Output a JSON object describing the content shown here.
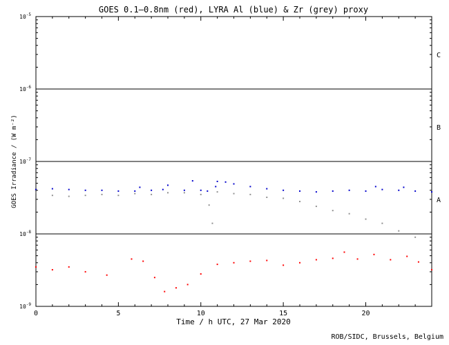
{
  "chart_data": {
    "type": "scatter",
    "title": "GOES 0.1–0.8nm (red), LYRA Al (blue) & Zr (grey) proxy",
    "xlabel": "Time / h UTC, 27 Mar 2020",
    "ylabel": "GOES Irradiance / (W m⁻²)",
    "xlim": [
      0,
      24
    ],
    "ylim": [
      1e-09,
      1e-05
    ],
    "y_scale": "log",
    "x_ticks": [
      0,
      5,
      10,
      15,
      20
    ],
    "x_tick_labels": [
      "0",
      "5",
      "10",
      "15",
      "20"
    ],
    "y_ticks": [
      1e-09,
      1e-08,
      1e-07,
      1e-06,
      1e-05
    ],
    "y_tick_labels": [
      {
        "base": "10",
        "exp": "-9"
      },
      {
        "base": "10",
        "exp": "-8"
      },
      {
        "base": "10",
        "exp": "-7"
      },
      {
        "base": "10",
        "exp": "-6"
      },
      {
        "base": "10",
        "exp": "-5"
      }
    ],
    "class_lines": [
      1e-08,
      1e-07,
      1e-06
    ],
    "class_labels": [
      {
        "label": "A",
        "y": 3e-08
      },
      {
        "label": "B",
        "y": 3e-07
      },
      {
        "label": "C",
        "y": 3e-06
      }
    ],
    "series": [
      {
        "name": "GOES 0.1–0.8nm",
        "color": "#ff0000",
        "x": [
          0,
          1,
          2,
          3,
          4.3,
          5.8,
          6.5,
          7.2,
          7.8,
          8.5,
          9.2,
          10,
          11,
          12,
          13,
          14,
          15,
          16,
          17,
          18,
          18.7,
          19.5,
          20.5,
          21.5,
          22.5,
          23.2,
          24
        ],
        "y": [
          3.5e-09,
          3.2e-09,
          3.5e-09,
          3e-09,
          2.7e-09,
          4.5e-09,
          4.2e-09,
          2.5e-09,
          1.6e-09,
          1.8e-09,
          2e-09,
          2.8e-09,
          3.8e-09,
          4e-09,
          4.2e-09,
          4.3e-09,
          3.7e-09,
          4e-09,
          4.4e-09,
          4.6e-09,
          5.6e-09,
          4.5e-09,
          5.2e-09,
          4.4e-09,
          4.9e-09,
          4.1e-09,
          3.2e-09
        ]
      },
      {
        "name": "LYRA Al",
        "color": "#0000cc",
        "x": [
          0,
          1,
          2,
          3,
          4,
          5,
          6,
          6.3,
          7,
          7.7,
          8,
          9,
          9.5,
          10,
          10.4,
          10.9,
          11,
          11.5,
          12,
          13,
          14,
          15,
          16,
          17,
          18,
          19,
          20,
          20.6,
          21,
          22,
          22.3,
          23,
          24
        ],
        "y": [
          4.1e-08,
          4.2e-08,
          4.1e-08,
          4e-08,
          4e-08,
          3.9e-08,
          3.9e-08,
          4.4e-08,
          4e-08,
          4.1e-08,
          4.7e-08,
          4e-08,
          5.4e-08,
          4e-08,
          3.9e-08,
          4.5e-08,
          5.3e-08,
          5.2e-08,
          4.9e-08,
          4.5e-08,
          4.2e-08,
          4e-08,
          3.9e-08,
          3.8e-08,
          3.9e-08,
          4e-08,
          3.9e-08,
          4.5e-08,
          4.1e-08,
          4e-08,
          4.4e-08,
          3.9e-08,
          3.8e-08
        ]
      },
      {
        "name": "Zr proxy",
        "color": "#909090",
        "x": [
          0,
          1,
          2,
          3,
          4,
          5,
          6,
          7,
          8,
          9,
          10,
          10.5,
          10.7,
          11,
          12,
          13,
          14,
          15,
          16,
          17,
          18,
          19,
          20,
          21,
          22,
          23,
          24
        ],
        "y": [
          3.7e-08,
          3.4e-08,
          3.3e-08,
          3.4e-08,
          3.5e-08,
          3.4e-08,
          3.6e-08,
          3.5e-08,
          3.7e-08,
          3.7e-08,
          3.5e-08,
          2.5e-08,
          1.4e-08,
          3.8e-08,
          3.6e-08,
          3.5e-08,
          3.2e-08,
          3.1e-08,
          2.8e-08,
          2.4e-08,
          2.1e-08,
          1.9e-08,
          1.6e-08,
          1.4e-08,
          1.1e-08,
          9e-09,
          7e-09
        ]
      }
    ]
  },
  "footer": {
    "credit": "ROB/SIDC, Brussels, Belgium"
  }
}
